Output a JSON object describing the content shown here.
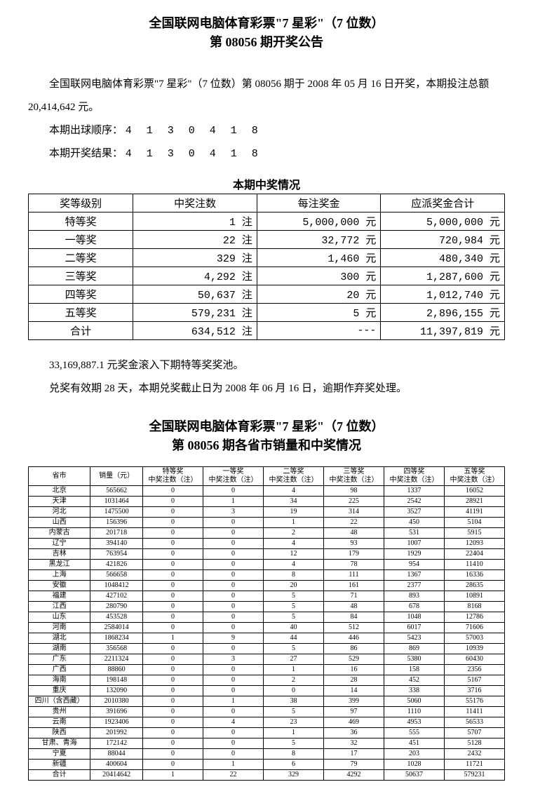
{
  "title_line1": "全国联网电脑体育彩票\"7 星彩\"（7 位数）",
  "title_line2": "第 08056 期开奖公告",
  "intro": "全国联网电脑体育彩票\"7 星彩\"（7 位数）第 08056 期于 2008 年 05 月 16 日开奖，本期投注总额 20,414,642 元。",
  "draw_order_label": "本期出球顺序：",
  "draw_order_digits": "4 1 3 0 4 1 8",
  "draw_result_label": "本期开奖结果：",
  "draw_result_digits": "4 1 3 0 4 1 8",
  "prize_section_title": "本期中奖情况",
  "prize_table": {
    "headers": [
      "奖等级别",
      "中奖注数",
      "每注奖金",
      "应派奖金合计"
    ],
    "unit_bets": "注",
    "unit_money": "元",
    "rows": [
      {
        "level": "特等奖",
        "bets": "1",
        "per": "5,000,000",
        "total": "5,000,000"
      },
      {
        "level": "一等奖",
        "bets": "22",
        "per": "32,772",
        "total": "720,984"
      },
      {
        "level": "二等奖",
        "bets": "329",
        "per": "1,460",
        "total": "480,340"
      },
      {
        "level": "三等奖",
        "bets": "4,292",
        "per": "300",
        "total": "1,287,600"
      },
      {
        "level": "四等奖",
        "bets": "50,637",
        "per": "20",
        "total": "1,012,740"
      },
      {
        "level": "五等奖",
        "bets": "579,231",
        "per": "5",
        "total": "2,896,155"
      },
      {
        "level": "合计",
        "bets": "634,512",
        "per": "---",
        "total": "11,397,819"
      }
    ]
  },
  "rollover": "33,169,887.1 元奖金滚入下期特等奖奖池。",
  "claim": "兑奖有效期 28 天，本期兑奖截止日为 2008 年 06 月 16 日，逾期作弃奖处理。",
  "sub_title_line1": "全国联网电脑体育彩票\"7 星彩\"（7 位数）",
  "sub_title_line2": "第 08056 期各省市销量和中奖情况",
  "province_table": {
    "headers": [
      "省市",
      "销量（元）",
      "特等奖\n中奖注数（注）",
      "一等奖\n中奖注数（注）",
      "二等奖\n中奖注数（注）",
      "三等奖\n中奖注数（注）",
      "四等奖\n中奖注数（注）",
      "五等奖\n中奖注数（注）"
    ],
    "rows": [
      [
        "北京",
        "565662",
        "0",
        "0",
        "4",
        "98",
        "1337",
        "16052"
      ],
      [
        "天津",
        "1031464",
        "0",
        "1",
        "34",
        "225",
        "2542",
        "28921"
      ],
      [
        "河北",
        "1475500",
        "0",
        "3",
        "19",
        "314",
        "3527",
        "41191"
      ],
      [
        "山西",
        "156396",
        "0",
        "0",
        "1",
        "22",
        "450",
        "5104"
      ],
      [
        "内蒙古",
        "201718",
        "0",
        "0",
        "2",
        "48",
        "531",
        "5915"
      ],
      [
        "辽宁",
        "394140",
        "0",
        "0",
        "4",
        "93",
        "1007",
        "12093"
      ],
      [
        "吉林",
        "763954",
        "0",
        "0",
        "12",
        "179",
        "1929",
        "22404"
      ],
      [
        "黑龙江",
        "421826",
        "0",
        "0",
        "4",
        "78",
        "954",
        "11410"
      ],
      [
        "上海",
        "566658",
        "0",
        "0",
        "8",
        "111",
        "1367",
        "16336"
      ],
      [
        "安徽",
        "1048412",
        "0",
        "0",
        "20",
        "161",
        "2377",
        "28635"
      ],
      [
        "福建",
        "427102",
        "0",
        "0",
        "5",
        "71",
        "893",
        "10891"
      ],
      [
        "江西",
        "280790",
        "0",
        "0",
        "5",
        "48",
        "678",
        "8168"
      ],
      [
        "山东",
        "453528",
        "0",
        "0",
        "5",
        "84",
        "1048",
        "12786"
      ],
      [
        "河南",
        "2584014",
        "0",
        "0",
        "40",
        "512",
        "6017",
        "71606"
      ],
      [
        "湖北",
        "1868234",
        "1",
        "9",
        "44",
        "446",
        "5423",
        "57003"
      ],
      [
        "湖南",
        "356568",
        "0",
        "0",
        "5",
        "86",
        "869",
        "10939"
      ],
      [
        "广东",
        "2211324",
        "0",
        "3",
        "27",
        "529",
        "5380",
        "60430"
      ],
      [
        "广西",
        "88860",
        "0",
        "0",
        "1",
        "16",
        "158",
        "2356"
      ],
      [
        "海南",
        "198148",
        "0",
        "0",
        "2",
        "28",
        "452",
        "5167"
      ],
      [
        "重庆",
        "132090",
        "0",
        "0",
        "0",
        "14",
        "338",
        "3716"
      ],
      [
        "四川（含西藏）",
        "2010380",
        "0",
        "1",
        "38",
        "399",
        "5060",
        "55176"
      ],
      [
        "贵州",
        "391696",
        "0",
        "0",
        "5",
        "97",
        "1110",
        "11411"
      ],
      [
        "云南",
        "1923406",
        "0",
        "4",
        "23",
        "469",
        "4953",
        "56533"
      ],
      [
        "陕西",
        "201992",
        "0",
        "0",
        "1",
        "36",
        "555",
        "5707"
      ],
      [
        "甘肃、青海",
        "172142",
        "0",
        "0",
        "5",
        "32",
        "451",
        "5128"
      ],
      [
        "宁夏",
        "88044",
        "0",
        "0",
        "8",
        "17",
        "203",
        "2432"
      ],
      [
        "新疆",
        "400604",
        "0",
        "1",
        "6",
        "79",
        "1028",
        "11721"
      ],
      [
        "合计",
        "20414642",
        "1",
        "22",
        "329",
        "4292",
        "50637",
        "579231"
      ]
    ]
  }
}
